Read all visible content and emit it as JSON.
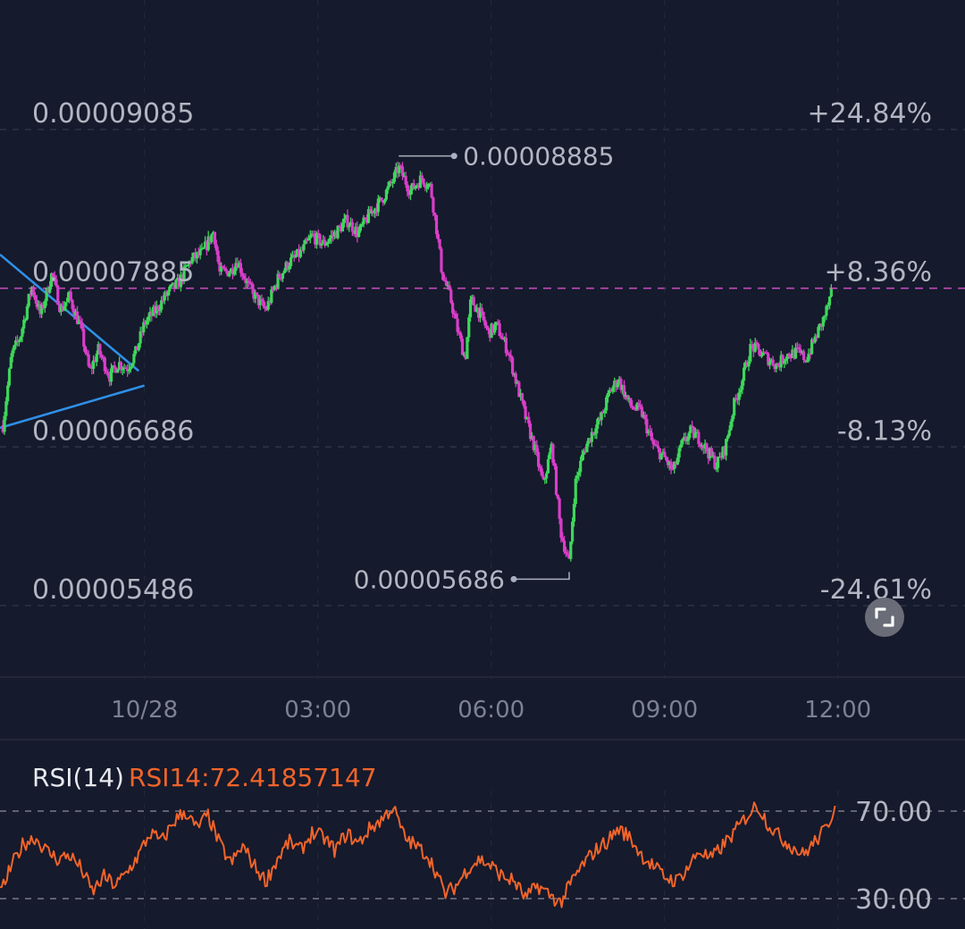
{
  "chart_data": [
    {
      "type": "candlestick",
      "ylim": [
        5.486e-05,
        9.085e-05
      ],
      "y_ticks": [
        {
          "value": 9.085e-05,
          "label": "0.00009085",
          "pct_label": "+24.84%"
        },
        {
          "value": 7.885e-05,
          "label": "0.00007885",
          "pct_label": "+8.36%"
        },
        {
          "value": 6.686e-05,
          "label": "0.00006686",
          "pct_label": "-8.13%"
        },
        {
          "value": 5.486e-05,
          "label": "0.00005486",
          "pct_label": "-24.61%"
        }
      ],
      "x_ticks": [
        "10/28",
        "03:00",
        "06:00",
        "09:00",
        "12:00"
      ],
      "x_tick_hours": [
        0,
        3,
        6,
        9,
        12
      ],
      "x_range_hours": [
        -2.5,
        14.2
      ],
      "current_price_pct": "+8.36%",
      "high": {
        "label": "0.00008885",
        "value": 8.885e-05,
        "hour": 4.4
      },
      "low": {
        "label": "0.00005686",
        "value": 5.686e-05,
        "hour": 7.35
      },
      "trendlines": [
        {
          "from": {
            "hour": -2.5,
            "value": 8.14e-05
          },
          "to": {
            "hour": -0.1,
            "value": 7.26e-05
          }
        },
        {
          "from": {
            "hour": -2.5,
            "value": 6.83e-05
          },
          "to": {
            "hour": 0.0,
            "value": 7.15e-05
          }
        }
      ],
      "path_keypoints": [
        [
          -2.45,
          6.85e-05
        ],
        [
          -2.3,
          7.38e-05
        ],
        [
          -2.15,
          7.52e-05
        ],
        [
          -1.95,
          7.9e-05
        ],
        [
          -1.8,
          7.68e-05
        ],
        [
          -1.6,
          8e-05
        ],
        [
          -1.45,
          7.72e-05
        ],
        [
          -1.3,
          7.82e-05
        ],
        [
          -1.1,
          7.58e-05
        ],
        [
          -0.95,
          7.25e-05
        ],
        [
          -0.8,
          7.42e-05
        ],
        [
          -0.6,
          7.22e-05
        ],
        [
          -0.45,
          7.32e-05
        ],
        [
          -0.3,
          7.28e-05
        ],
        [
          -0.15,
          7.4e-05
        ],
        [
          0.0,
          7.62e-05
        ],
        [
          0.2,
          7.72e-05
        ],
        [
          0.4,
          7.85e-05
        ],
        [
          0.6,
          7.93e-05
        ],
        [
          0.8,
          8.1e-05
        ],
        [
          1.0,
          8.15e-05
        ],
        [
          1.2,
          8.32e-05
        ],
        [
          1.3,
          8e-05
        ],
        [
          1.5,
          8.02e-05
        ],
        [
          1.6,
          8.1e-05
        ],
        [
          1.8,
          7.9e-05
        ],
        [
          1.95,
          7.8e-05
        ],
        [
          2.1,
          7.72e-05
        ],
        [
          2.3,
          7.95e-05
        ],
        [
          2.5,
          8.08e-05
        ],
        [
          2.7,
          8.15e-05
        ],
        [
          2.9,
          8.28e-05
        ],
        [
          3.1,
          8.22e-05
        ],
        [
          3.3,
          8.3e-05
        ],
        [
          3.5,
          8.4e-05
        ],
        [
          3.7,
          8.3e-05
        ],
        [
          3.9,
          8.45e-05
        ],
        [
          4.1,
          8.55e-05
        ],
        [
          4.3,
          8.7e-05
        ],
        [
          4.4,
          8.8e-05
        ],
        [
          4.6,
          8.62e-05
        ],
        [
          4.8,
          8.72e-05
        ],
        [
          4.95,
          8.65e-05
        ],
        [
          5.05,
          8.35e-05
        ],
        [
          5.15,
          8e-05
        ],
        [
          5.3,
          7.8e-05
        ],
        [
          5.4,
          7.6e-05
        ],
        [
          5.55,
          7.35e-05
        ],
        [
          5.65,
          7.8e-05
        ],
        [
          5.8,
          7.7e-05
        ],
        [
          5.95,
          7.55e-05
        ],
        [
          6.1,
          7.6e-05
        ],
        [
          6.3,
          7.4e-05
        ],
        [
          6.45,
          7.15e-05
        ],
        [
          6.6,
          6.9e-05
        ],
        [
          6.75,
          6.68e-05
        ],
        [
          6.9,
          6.4e-05
        ],
        [
          7.05,
          6.7e-05
        ],
        [
          7.2,
          6.05e-05
        ],
        [
          7.35,
          5.8e-05
        ],
        [
          7.45,
          6.4e-05
        ],
        [
          7.6,
          6.65e-05
        ],
        [
          7.75,
          6.8e-05
        ],
        [
          7.9,
          6.9e-05
        ],
        [
          8.05,
          7.1e-05
        ],
        [
          8.2,
          7.2e-05
        ],
        [
          8.4,
          7e-05
        ],
        [
          8.6,
          6.95e-05
        ],
        [
          8.8,
          6.7e-05
        ],
        [
          9.0,
          6.6e-05
        ],
        [
          9.15,
          6.5e-05
        ],
        [
          9.3,
          6.7e-05
        ],
        [
          9.45,
          6.8e-05
        ],
        [
          9.6,
          6.75e-05
        ],
        [
          9.75,
          6.65e-05
        ],
        [
          9.9,
          6.55e-05
        ],
        [
          10.05,
          6.68e-05
        ],
        [
          10.2,
          7e-05
        ],
        [
          10.35,
          7.2e-05
        ],
        [
          10.5,
          7.45e-05
        ],
        [
          10.65,
          7.4e-05
        ],
        [
          10.8,
          7.35e-05
        ],
        [
          10.95,
          7.3e-05
        ],
        [
          11.1,
          7.38e-05
        ],
        [
          11.3,
          7.4e-05
        ],
        [
          11.45,
          7.35e-05
        ],
        [
          11.6,
          7.5e-05
        ],
        [
          11.75,
          7.65e-05
        ],
        [
          11.9,
          7.85e-05
        ]
      ]
    },
    {
      "type": "line",
      "name": "RSI(14)",
      "value_label": "RSI14:72.41857147",
      "levels": [
        70.0,
        30.0
      ],
      "level_labels": [
        "70.00",
        "30.00"
      ],
      "ylim": [
        24,
        76
      ],
      "keypoints": [
        [
          -2.5,
          32
        ],
        [
          -2.3,
          45
        ],
        [
          -2.1,
          55
        ],
        [
          -1.9,
          58
        ],
        [
          -1.7,
          52
        ],
        [
          -1.5,
          48
        ],
        [
          -1.3,
          50
        ],
        [
          -1.1,
          44
        ],
        [
          -0.9,
          33
        ],
        [
          -0.7,
          40
        ],
        [
          -0.5,
          36
        ],
        [
          -0.3,
          42
        ],
        [
          -0.1,
          50
        ],
        [
          0.1,
          60
        ],
        [
          0.3,
          56
        ],
        [
          0.5,
          65
        ],
        [
          0.7,
          70
        ],
        [
          0.9,
          62
        ],
        [
          1.1,
          68
        ],
        [
          1.3,
          55
        ],
        [
          1.5,
          46
        ],
        [
          1.7,
          54
        ],
        [
          1.9,
          45
        ],
        [
          2.1,
          38
        ],
        [
          2.3,
          48
        ],
        [
          2.5,
          56
        ],
        [
          2.7,
          52
        ],
        [
          2.9,
          60
        ],
        [
          3.1,
          58
        ],
        [
          3.3,
          52
        ],
        [
          3.5,
          60
        ],
        [
          3.7,
          55
        ],
        [
          3.9,
          62
        ],
        [
          4.1,
          66
        ],
        [
          4.3,
          72
        ],
        [
          4.5,
          58
        ],
        [
          4.7,
          54
        ],
        [
          4.9,
          50
        ],
        [
          5.05,
          42
        ],
        [
          5.2,
          32
        ],
        [
          5.4,
          36
        ],
        [
          5.6,
          44
        ],
        [
          5.8,
          48
        ],
        [
          6.0,
          45
        ],
        [
          6.2,
          40
        ],
        [
          6.4,
          38
        ],
        [
          6.6,
          30
        ],
        [
          6.8,
          36
        ],
        [
          7.0,
          32
        ],
        [
          7.2,
          28
        ],
        [
          7.4,
          38
        ],
        [
          7.6,
          46
        ],
        [
          7.8,
          52
        ],
        [
          8.0,
          56
        ],
        [
          8.2,
          62
        ],
        [
          8.4,
          58
        ],
        [
          8.6,
          50
        ],
        [
          8.8,
          45
        ],
        [
          9.0,
          40
        ],
        [
          9.2,
          38
        ],
        [
          9.4,
          44
        ],
        [
          9.6,
          52
        ],
        [
          9.8,
          48
        ],
        [
          10.0,
          54
        ],
        [
          10.2,
          60
        ],
        [
          10.4,
          67
        ],
        [
          10.6,
          73
        ],
        [
          10.8,
          64
        ],
        [
          11.0,
          58
        ],
        [
          11.2,
          54
        ],
        [
          11.4,
          50
        ],
        [
          11.6,
          56
        ],
        [
          11.8,
          62
        ],
        [
          11.95,
          72.4
        ]
      ]
    }
  ],
  "expand_icon": "expand-icon"
}
